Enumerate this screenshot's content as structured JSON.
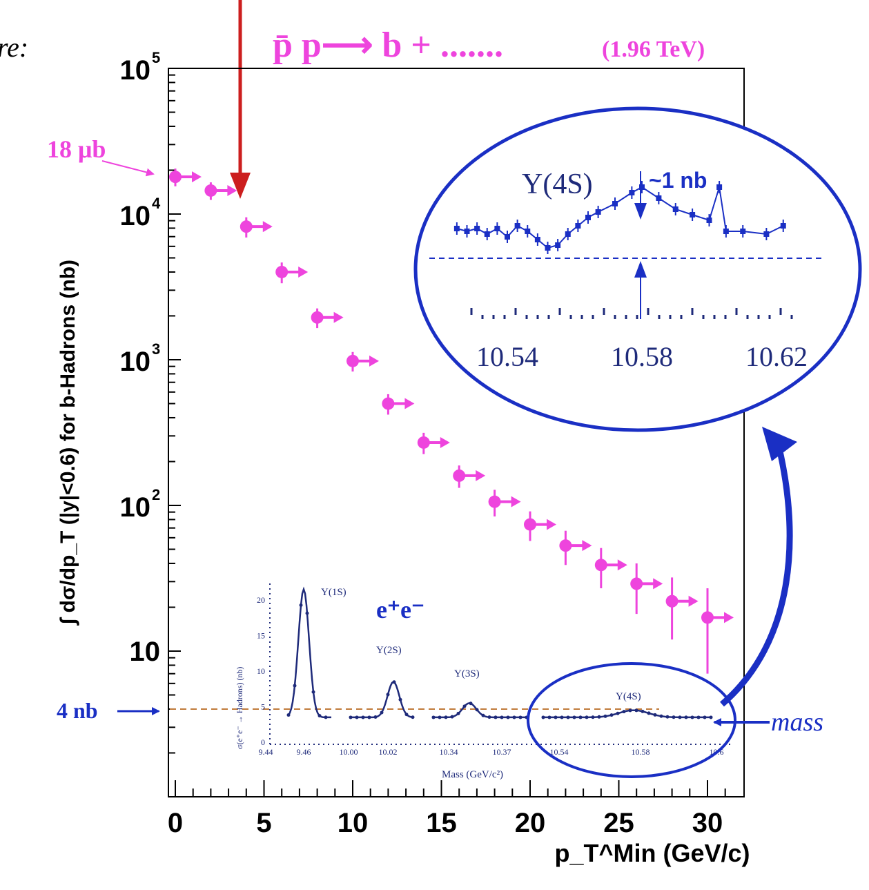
{
  "colors": {
    "magenta": "#ee44dd",
    "blue": "#1a2fc4",
    "darkblue": "#1e2a7a",
    "red": "#cc1e1e",
    "brown_dashed": "#c07a3a",
    "frame": "#000000"
  },
  "header": {
    "fragment": "re:",
    "process": "p̄ p⟶ b + .......",
    "energy": "(1.96 TeV)"
  },
  "chart_data": [
    {
      "type": "scatter",
      "title": "",
      "xlabel": "p_T^Min (GeV/c)",
      "ylabel": "∫ dσ/dp_T (|y|<0.6) for b-Hadrons (nb)",
      "xlim": [
        -0.5,
        31.5
      ],
      "ylim": [
        1,
        100000
      ],
      "yscale": "log",
      "x_ticks": [
        0,
        5,
        10,
        15,
        20,
        25,
        30
      ],
      "y_ticks": [
        10,
        100,
        1000,
        10000,
        100000
      ],
      "y_tick_labels": [
        "10",
        "10²",
        "10³",
        "10⁴",
        "10⁵"
      ],
      "series": [
        {
          "color": "#ee44dd",
          "marker": "circle-with-right-arrow",
          "points": [
            {
              "x": 0,
              "y": 18000,
              "err": 2500
            },
            {
              "x": 2,
              "y": 14500,
              "err": 2000
            },
            {
              "x": 4,
              "y": 8200,
              "err": 1300
            },
            {
              "x": 6,
              "y": 4000,
              "err": 650
            },
            {
              "x": 8,
              "y": 1950,
              "err": 300
            },
            {
              "x": 10,
              "y": 980,
              "err": 150
            },
            {
              "x": 12,
              "y": 500,
              "err": 80
            },
            {
              "x": 14,
              "y": 270,
              "err": 45
            },
            {
              "x": 16,
              "y": 160,
              "err": 28
            },
            {
              "x": 18,
              "y": 106,
              "err": 22
            },
            {
              "x": 20,
              "y": 74,
              "err": 17
            },
            {
              "x": 22,
              "y": 53,
              "err": 14
            },
            {
              "x": 24,
              "y": 39,
              "err": 12
            },
            {
              "x": 26,
              "y": 29,
              "err": 11
            },
            {
              "x": 28,
              "y": 22,
              "err": 10
            },
            {
              "x": 30,
              "y": 17,
              "err": 10
            }
          ]
        }
      ],
      "annotations": {
        "mu_b_label": "18 μb",
        "nb_label": "4 nb",
        "reference_line_y": 4,
        "mass_label": "mass"
      }
    },
    {
      "type": "line",
      "title": "e⁺e⁻",
      "xlabel": "Mass (GeV/c²)",
      "ylabel": "σ(e⁺e⁻ → Hadrons) (nb)",
      "ylim": [
        0,
        24
      ],
      "y_ticks": [
        0,
        5,
        10,
        15,
        20
      ],
      "x_tick_labels": [
        "9.44",
        "9.46",
        "10.00",
        "10.02",
        "10.34",
        "10.37",
        "10.54",
        "10.58",
        "10.62"
      ],
      "peaks": [
        {
          "label": "Υ(1S)",
          "mass": 9.46,
          "peak_nb": 21.5
        },
        {
          "label": "Υ(2S)",
          "mass": 10.02,
          "peak_nb": 8.5
        },
        {
          "label": "Υ(3S)",
          "mass": 10.355,
          "peak_nb": 5.5
        },
        {
          "label": "Υ(4S)",
          "mass": 10.58,
          "peak_nb": 4.5
        }
      ],
      "x_tick_display": "10.6",
      "continuum_nb": 3.5
    },
    {
      "type": "scatter",
      "title": "Υ(4S)",
      "annotation": "~1 nb",
      "x_tick_labels": [
        "10.54",
        "10.58",
        "10.62"
      ],
      "points": [
        {
          "x": 10.525,
          "y": 0.55
        },
        {
          "x": 10.528,
          "y": 0.5
        },
        {
          "x": 10.531,
          "y": 0.55
        },
        {
          "x": 10.534,
          "y": 0.45
        },
        {
          "x": 10.537,
          "y": 0.55
        },
        {
          "x": 10.54,
          "y": 0.4
        },
        {
          "x": 10.543,
          "y": 0.6
        },
        {
          "x": 10.546,
          "y": 0.5
        },
        {
          "x": 10.549,
          "y": 0.35
        },
        {
          "x": 10.552,
          "y": 0.2
        },
        {
          "x": 10.555,
          "y": 0.25
        },
        {
          "x": 10.558,
          "y": 0.45
        },
        {
          "x": 10.561,
          "y": 0.6
        },
        {
          "x": 10.564,
          "y": 0.75
        },
        {
          "x": 10.567,
          "y": 0.85
        },
        {
          "x": 10.572,
          "y": 1.0
        },
        {
          "x": 10.577,
          "y": 1.2
        },
        {
          "x": 10.58,
          "y": 1.3
        },
        {
          "x": 10.585,
          "y": 1.1
        },
        {
          "x": 10.59,
          "y": 0.9
        },
        {
          "x": 10.595,
          "y": 0.8
        },
        {
          "x": 10.6,
          "y": 0.7
        },
        {
          "x": 10.603,
          "y": 1.3
        },
        {
          "x": 10.605,
          "y": 0.5
        },
        {
          "x": 10.61,
          "y": 0.5
        },
        {
          "x": 10.617,
          "y": 0.45
        },
        {
          "x": 10.622,
          "y": 0.6
        }
      ]
    }
  ]
}
